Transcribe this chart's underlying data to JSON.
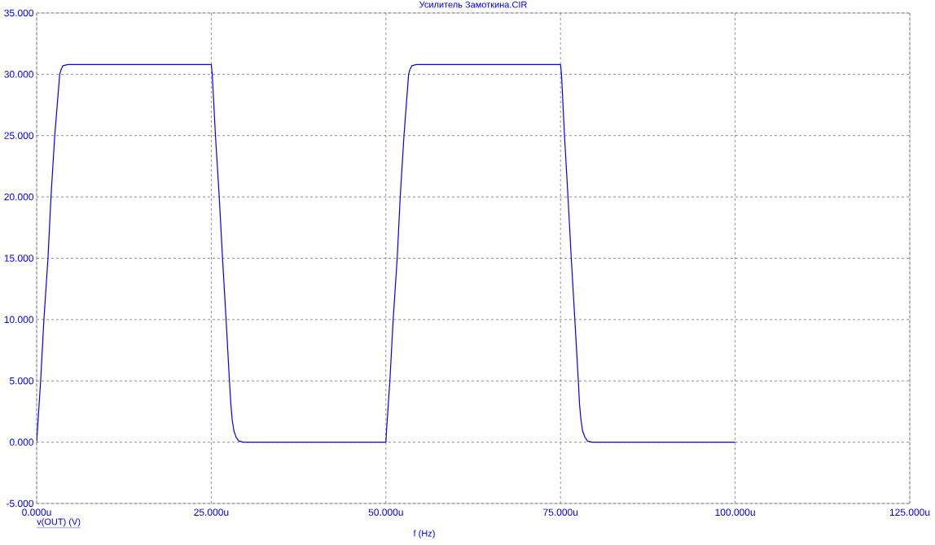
{
  "chart_data": {
    "type": "line",
    "title": "Усилитель Замоткина.CIR",
    "xlabel": "f (Hz)",
    "x": [
      0,
      0.57,
      1.04,
      1.62,
      2.05,
      2.59,
      3.3,
      3.45,
      3.6,
      3.75,
      4.45,
      25.0,
      25.14,
      25.6,
      26.14,
      26.61,
      27.12,
      27.6,
      27.8,
      28.0,
      28.25,
      28.56,
      28.94,
      29.6,
      50.0,
      50.06,
      50.57,
      51.04,
      51.62,
      52.05,
      52.59,
      53.25,
      53.4,
      53.55,
      53.7,
      54.4,
      75.0,
      75.14,
      75.57,
      76.07,
      76.54,
      77.05,
      77.55,
      77.72,
      77.93,
      78.17,
      78.5,
      78.87,
      79.5,
      100
    ],
    "series": [
      {
        "name": "v(OUT) (V)",
        "color": "#0000ff",
        "values": [
          0,
          5,
          10,
          15,
          20,
          25,
          30,
          30.3,
          30.5,
          30.7,
          30.8,
          30.8,
          30,
          25,
          20,
          15,
          10,
          5,
          3.1,
          1.8,
          0.9,
          0.4,
          0.1,
          0,
          0,
          0.7,
          5,
          10,
          15,
          20,
          25,
          30,
          30.3,
          30.5,
          30.7,
          30.8,
          30.8,
          30,
          25,
          20,
          15,
          10,
          5,
          3.1,
          1.8,
          0.9,
          0.4,
          0.1,
          0,
          0
        ]
      }
    ],
    "xlim": [
      0,
      125
    ],
    "ylim": [
      -5,
      35
    ],
    "xticks": [
      {
        "value": 0,
        "label": "0.000u"
      },
      {
        "value": 25,
        "label": "25.000u"
      },
      {
        "value": 50,
        "label": "50.000u"
      },
      {
        "value": 75,
        "label": "75.000u"
      },
      {
        "value": 100,
        "label": "100.000u"
      },
      {
        "value": 125,
        "label": "125.000u"
      }
    ],
    "yticks": [
      {
        "value": -5,
        "label": "-5.000"
      },
      {
        "value": 0,
        "label": "0.000"
      },
      {
        "value": 5,
        "label": "5.000"
      },
      {
        "value": 10,
        "label": "10.000"
      },
      {
        "value": 15,
        "label": "15.000"
      },
      {
        "value": 20,
        "label": "20.000"
      },
      {
        "value": 25,
        "label": "25.000"
      },
      {
        "value": 30,
        "label": "30.000"
      },
      {
        "value": 35,
        "label": "35.000"
      }
    ],
    "grid": true,
    "line_style": "solid"
  }
}
